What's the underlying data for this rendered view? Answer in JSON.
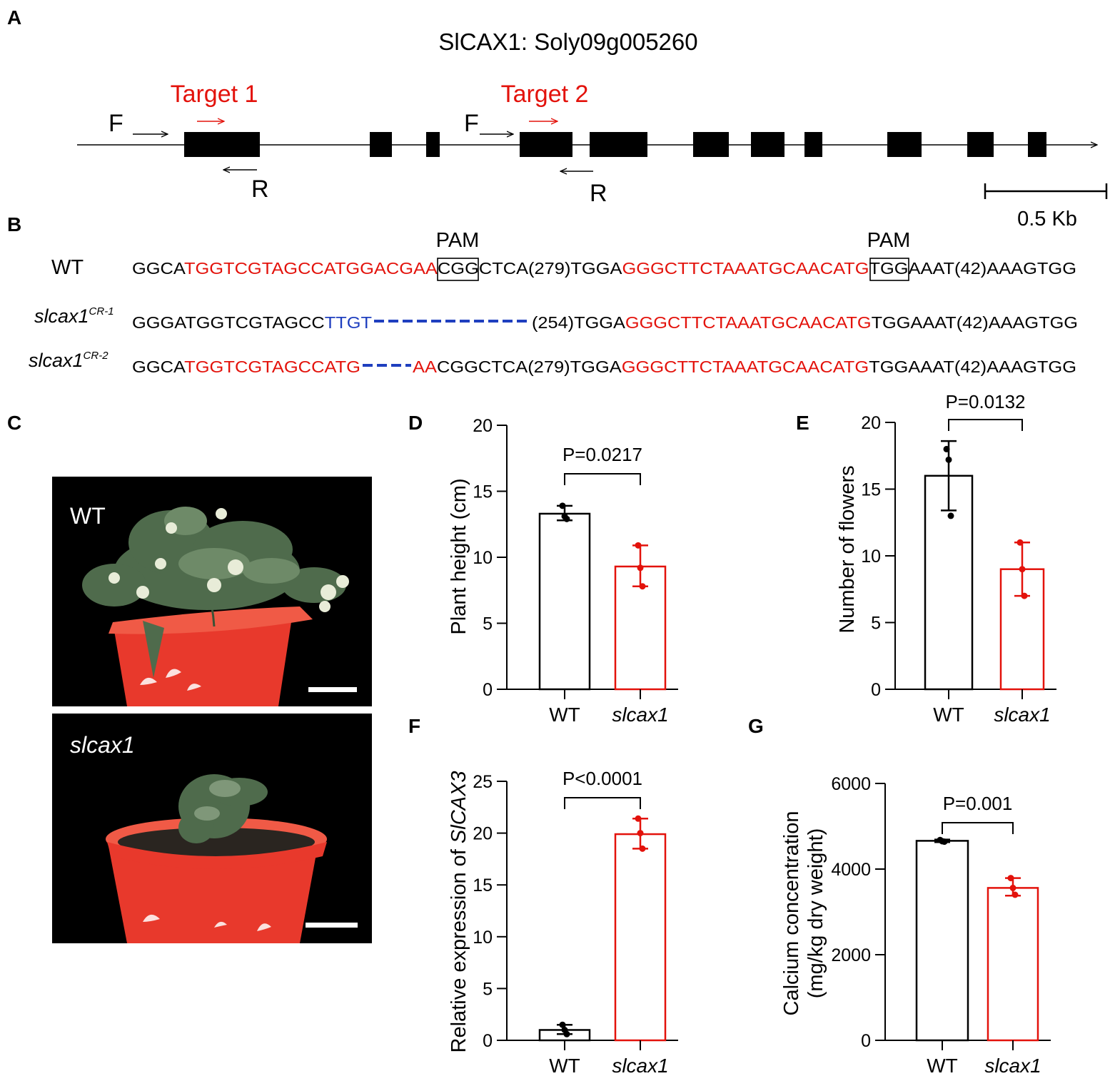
{
  "panels": {
    "A": "A",
    "B": "B",
    "C": "C",
    "D": "D",
    "E": "E",
    "F": "F",
    "G": "G"
  },
  "gene": {
    "title": "SlCAX1: Soly09g005260",
    "target1": "Target 1",
    "target2": "Target 2",
    "forward": "F",
    "reverse": "R",
    "scale_label": "0.5 Kb"
  },
  "sequences": {
    "pam_label": "PAM",
    "wt": {
      "label": "WT",
      "parts": [
        {
          "t": "GGCA",
          "c": "k"
        },
        {
          "t": "TGGTCGTAGCCATGGACGAA",
          "c": "r"
        },
        {
          "t": "CGG",
          "c": "k"
        },
        {
          "t": "CTCA(279)TGGA",
          "c": "k"
        },
        {
          "t": "GGGCTTCTAAATGCAACATG",
          "c": "r"
        },
        {
          "t": "TGG",
          "c": "k"
        },
        {
          "t": "AAAT(42)AAAGTGG",
          "c": "k"
        }
      ]
    },
    "cr1": {
      "label_main": "slcax1",
      "label_sup": "CR-1",
      "parts_a": [
        {
          "t": "GGGATGGTCGTAGCC",
          "c": "k"
        },
        {
          "t": "TTGT",
          "c": "b"
        }
      ],
      "parts_b": [
        {
          "t": "(254)TGGA",
          "c": "k"
        },
        {
          "t": "GGGCTTCTAAATGCAACATG",
          "c": "r"
        },
        {
          "t": "TGGAAAT(42)AAAGTGG",
          "c": "k"
        }
      ]
    },
    "cr2": {
      "label_main": "slcax1",
      "label_sup": "CR-2",
      "parts_a": [
        {
          "t": "GGCA",
          "c": "k"
        },
        {
          "t": "TGGTCGTAGCCATG",
          "c": "r"
        }
      ],
      "parts_b": [
        {
          "t": "AA",
          "c": "r"
        },
        {
          "t": "CGGCTCA(279)TGGA",
          "c": "k"
        },
        {
          "t": "GGGCTTCTAAATGCAACATG",
          "c": "r"
        },
        {
          "t": "TGGAAAT(42)AAAGTGG",
          "c": "k"
        }
      ]
    }
  },
  "photos": {
    "top_label": "WT",
    "bottom_label": "slcax1",
    "background": "#000000",
    "pot_color": "#e8392c"
  },
  "colors": {
    "wt": "#000000",
    "mutant": "#e3120b",
    "deletion": "#1f3fbf"
  },
  "chart_data": [
    {
      "panel": "D",
      "type": "bar",
      "categories": [
        "WT",
        "slcax1"
      ],
      "values": [
        13.3,
        9.3
      ],
      "error": [
        [
          12.8,
          13.9
        ],
        [
          7.8,
          10.9
        ]
      ],
      "points": [
        [
          13.9,
          13.1,
          12.9
        ],
        [
          10.9,
          9.2,
          7.8
        ]
      ],
      "ylabel": "Plant height (cm)",
      "ylim": [
        0,
        20
      ],
      "yticks": [
        0,
        5,
        10,
        15,
        20
      ],
      "pvalue": "P=0.0217"
    },
    {
      "panel": "E",
      "type": "bar",
      "categories": [
        "WT",
        "slcax1"
      ],
      "values": [
        16.0,
        9.0
      ],
      "error": [
        [
          13.4,
          18.6
        ],
        [
          7.0,
          11.0
        ]
      ],
      "points": [
        [
          18.0,
          17.2,
          13.0
        ],
        [
          11.0,
          9.0,
          7.0
        ]
      ],
      "ylabel": "Number of flowers",
      "ylim": [
        0,
        20
      ],
      "yticks": [
        0,
        5,
        10,
        15,
        20
      ],
      "pvalue": "P=0.0132"
    },
    {
      "panel": "F",
      "type": "bar",
      "categories": [
        "WT",
        "slcax1"
      ],
      "values": [
        1.0,
        19.9
      ],
      "error": [
        [
          0.6,
          1.5
        ],
        [
          18.5,
          21.4
        ]
      ],
      "points": [
        [
          1.5,
          1.0,
          0.6
        ],
        [
          21.4,
          20.0,
          18.5
        ]
      ],
      "ylabel": "Relative expression of ",
      "ylabel_gene": "SlCAX3",
      "ylim": [
        0,
        25
      ],
      "yticks": [
        0,
        5,
        10,
        15,
        20,
        25
      ],
      "pvalue": "P<0.0001"
    },
    {
      "panel": "G",
      "type": "bar",
      "categories": [
        "WT",
        "slcax1"
      ],
      "values": [
        4660,
        3560
      ],
      "error": [
        [
          4630,
          4690
        ],
        [
          3380,
          3790
        ]
      ],
      "points": [
        [
          4680,
          4650,
          4640
        ],
        [
          3790,
          3560,
          3400
        ]
      ],
      "ylabel": "Calcium concentration",
      "ylabel2": "(mg/kg dry weight)",
      "ylim": [
        0,
        6000
      ],
      "yticks": [
        0,
        2000,
        4000,
        6000
      ],
      "pvalue": "P=0.001"
    }
  ]
}
